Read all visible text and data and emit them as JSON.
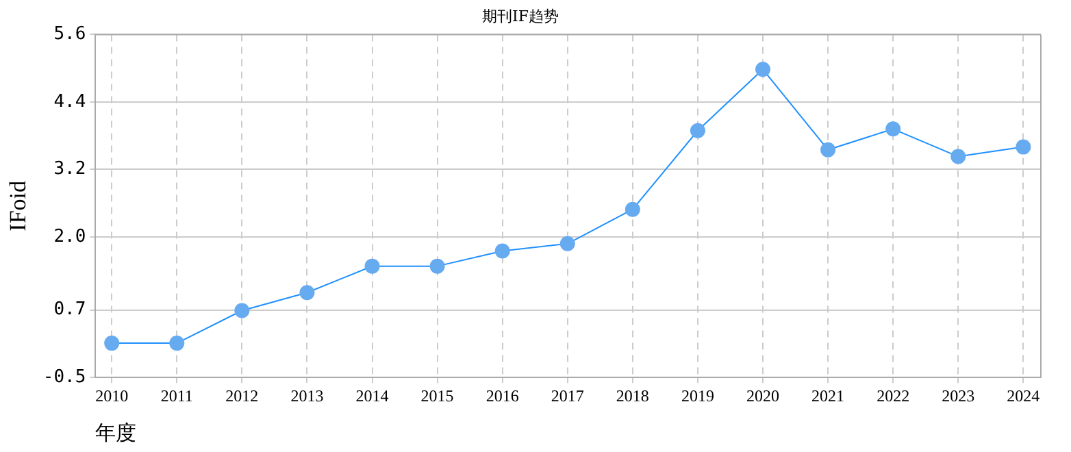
{
  "chart_data": {
    "type": "line",
    "title": "期刊IF趋势",
    "xlabel": "年度",
    "ylabel": "IFoid",
    "x": [
      2010,
      2011,
      2012,
      2013,
      2014,
      2015,
      2016,
      2017,
      2018,
      2019,
      2020,
      2021,
      2022,
      2023,
      2024
    ],
    "series": [
      {
        "color": "#1e90ff",
        "values": [
          0.11,
          0.11,
          0.69,
          1.01,
          1.48,
          1.48,
          1.75,
          1.88,
          2.49,
          3.89,
          4.98,
          3.55,
          3.92,
          3.43,
          3.6
        ]
      }
    ],
    "xlim": [
      2009.75,
      2024.27
    ],
    "xticks": [
      2010,
      2011,
      2012,
      2013,
      2014,
      2015,
      2016,
      2017,
      2018,
      2019,
      2020,
      2021,
      2022,
      2023,
      2024
    ],
    "ylim": [
      -0.5,
      5.6
    ],
    "yticks": [
      -0.5,
      0.7,
      {
        "value": 2.0,
        "label": "2.0"
      },
      3.2,
      4.4,
      5.6
    ],
    "grid": true,
    "legend": false,
    "marker": "circle",
    "line_style": "solid"
  }
}
